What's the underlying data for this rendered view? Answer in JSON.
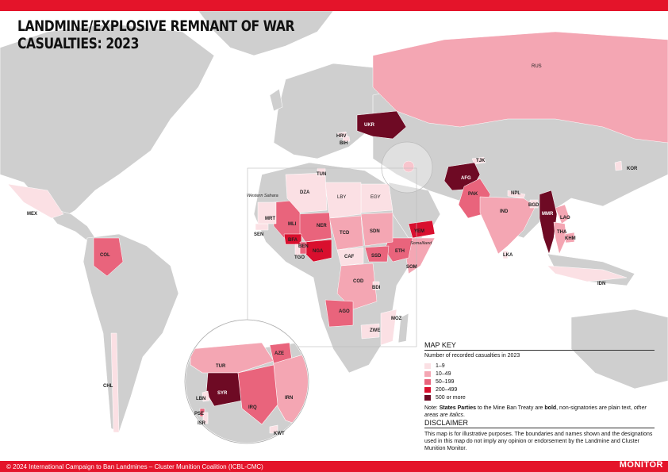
{
  "title_line1": "LANDMINE/EXPLOSIVE REMNANT OF WAR",
  "title_line2": "CASUALTIES: 2023",
  "footer": "© 2024 International Campaign to Ban Landmines – Cluster Munition Coalition (ICBL-CMC)",
  "logo": {
    "small": "Landmine & Cluster Munition",
    "big": "MONITOR"
  },
  "legend": {
    "heading": "MAP KEY",
    "subtitle": "Number of recorded casualties in 2023",
    "items": [
      {
        "label": "1–9",
        "color": "#fbe0e4"
      },
      {
        "label": "10–49",
        "color": "#f4a6b3"
      },
      {
        "label": "50–199",
        "color": "#e9647c"
      },
      {
        "label": "200–499",
        "color": "#d90f2e"
      },
      {
        "label": "500 or more",
        "color": "#6e0a24"
      }
    ],
    "note_prefix": "Note: ",
    "note_bold": "States Parties",
    "note_mid": " to the Mine Ban Treaty are ",
    "note_bold2": "bold",
    "note_mid2": ", non-signatories are plain text, ",
    "note_italic": "other areas are italics",
    "note_end": "."
  },
  "disclaimer": {
    "heading": "DISCLAIMER",
    "text": "This map is for illustrative purposes. The boundaries and names shown and the designations used in this map do not imply any opinion or endorsement by the Landmine and Cluster Munition Monitor."
  },
  "colors": {
    "land": "#cfcfcf",
    "water": "#ffffff",
    "border": "#ffffff"
  },
  "countries": {
    "RUS": "RUS",
    "UKR": "UKR",
    "HRV": "HRV",
    "BIH": "BIH",
    "TJK": "TJK",
    "KOR": "KOR",
    "AFG": "AFG",
    "PAK": "PAK",
    "NPL": "NPL",
    "IND": "IND",
    "BGD": "BGD",
    "MMR": "MMR",
    "LAO": "LAO",
    "THA": "THA",
    "KHM": "KHM",
    "LKA": "LKA",
    "IDN": "IDN",
    "YEM": "YEM",
    "SOM": "SOM",
    "ETH": "ETH",
    "SSD": "SSD",
    "SDN": "SDN",
    "EGY": "EGY",
    "LBY": "LBY",
    "TCD": "TCD",
    "NER": "NER",
    "NGA": "NGA",
    "CAF": "CAF",
    "COD": "COD",
    "BDI": "BDI",
    "AGO": "AGO",
    "ZWE": "ZWE",
    "MOZ": "MOZ",
    "MLI": "MLI",
    "BFA": "BFA",
    "BEN": "BEN",
    "TGO": "TGO",
    "SEN": "SEN",
    "MRT": "MRT",
    "DZA": "DZA",
    "TUN": "TUN",
    "MEX": "MEX",
    "COL": "COL",
    "CHL": "CHL",
    "TUR": "TUR",
    "AZE": "AZE",
    "SYR": "SYR",
    "LBN": "LBN",
    "IRQ": "IRQ",
    "IRN": "IRN",
    "PSE": "PSE",
    "ISR": "ISR",
    "KWT": "KWT"
  },
  "other_areas": {
    "western_sahara": "Western Sahara",
    "somaliland": "Somaliland"
  }
}
